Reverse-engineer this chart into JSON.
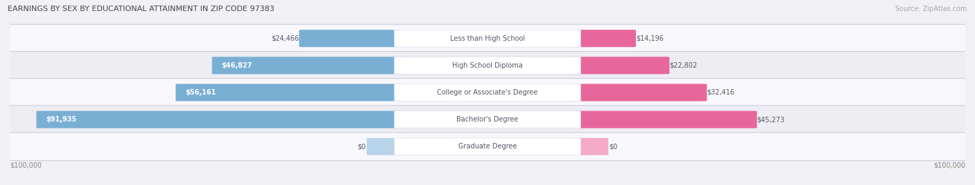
{
  "title": "EARNINGS BY SEX BY EDUCATIONAL ATTAINMENT IN ZIP CODE 97383",
  "source": "Source: ZipAtlas.com",
  "categories": [
    "Less than High School",
    "High School Diploma",
    "College or Associate's Degree",
    "Bachelor's Degree",
    "Graduate Degree"
  ],
  "male_values": [
    24466,
    46827,
    56161,
    91935,
    0
  ],
  "female_values": [
    14196,
    22802,
    32416,
    45273,
    0
  ],
  "max_value": 100000,
  "male_color": "#7aafd4",
  "female_color": "#e8679a",
  "male_color_light": "#b8d4ea",
  "female_color_light": "#f5aac8",
  "label_color": "#555566",
  "title_color": "#444444",
  "axis_label_color": "#888888",
  "source_color": "#aaaaaa",
  "background_color": "#f0f0f5",
  "row_bg_light": "#f8f8fc",
  "row_bg_dark": "#ededf2"
}
